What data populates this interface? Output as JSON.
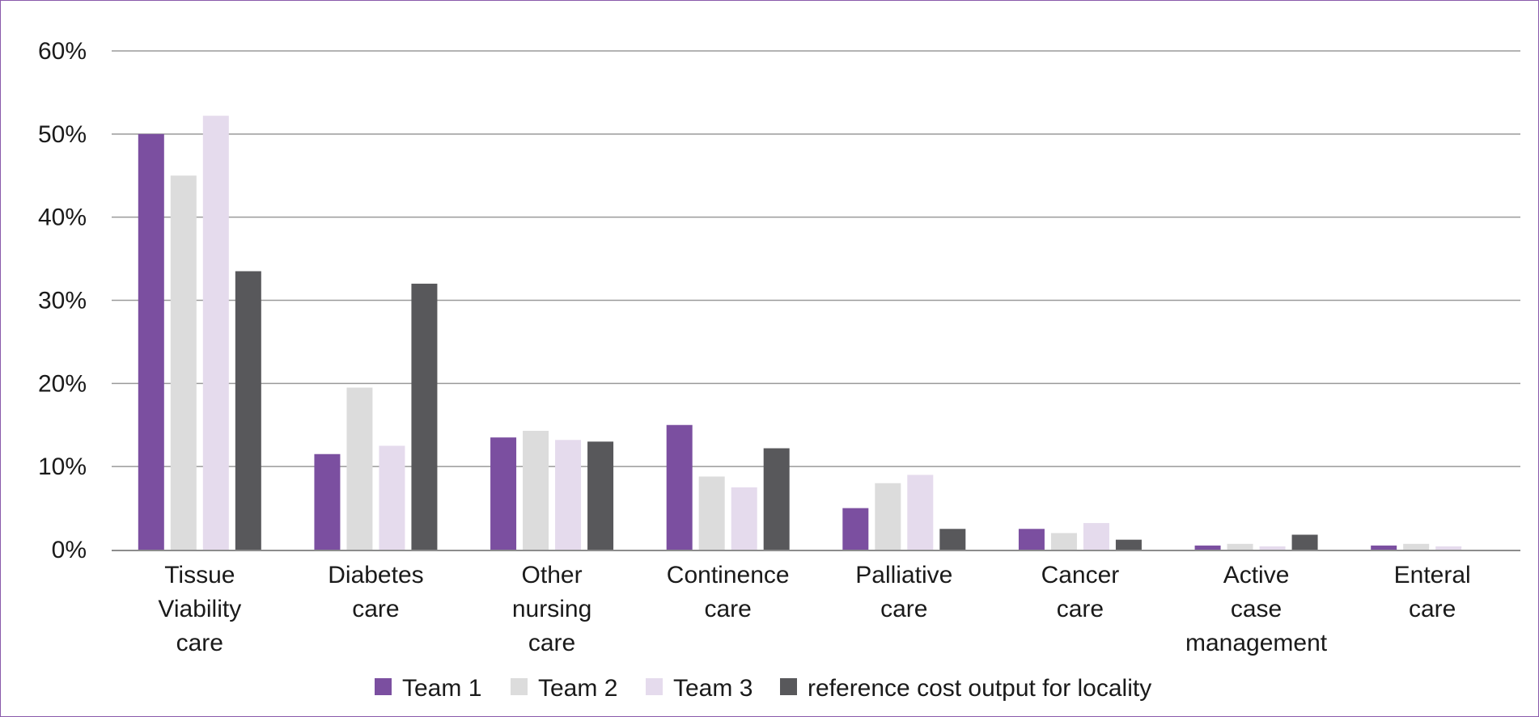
{
  "chart_data": {
    "type": "bar",
    "title": "",
    "xlabel": "",
    "ylabel": "",
    "ylim": [
      0,
      60
    ],
    "yticks": [
      "0%",
      "10%",
      "20%",
      "30%",
      "40%",
      "50%",
      "60%"
    ],
    "grid": true,
    "legend_position": "bottom",
    "categories": [
      [
        "Tissue",
        "Viability",
        "care"
      ],
      [
        "Diabetes",
        "care"
      ],
      [
        "Other",
        "nursing",
        "care"
      ],
      [
        "Continence",
        "care"
      ],
      [
        "Palliative",
        "care"
      ],
      [
        "Cancer",
        "care"
      ],
      [
        "Active",
        "case",
        "management"
      ],
      [
        "Enteral",
        "care"
      ]
    ],
    "series": [
      {
        "name": "Team 1",
        "color": "#7b4fa0",
        "values": [
          50,
          11.5,
          13.5,
          15,
          5,
          2.5,
          0.5,
          0.5
        ]
      },
      {
        "name": "Team 2",
        "color": "#dcdcdc",
        "values": [
          45,
          19.5,
          14.3,
          8.8,
          8,
          2,
          0.7,
          0.7
        ]
      },
      {
        "name": "Team 3",
        "color": "#e5dbed",
        "values": [
          52.2,
          12.5,
          13.2,
          7.5,
          9,
          3.2,
          0.4,
          0.4
        ]
      },
      {
        "name": "reference cost output for locality",
        "color": "#58585b",
        "values": [
          33.5,
          32,
          13,
          12.2,
          2.5,
          1.2,
          1.8,
          0
        ]
      }
    ]
  }
}
